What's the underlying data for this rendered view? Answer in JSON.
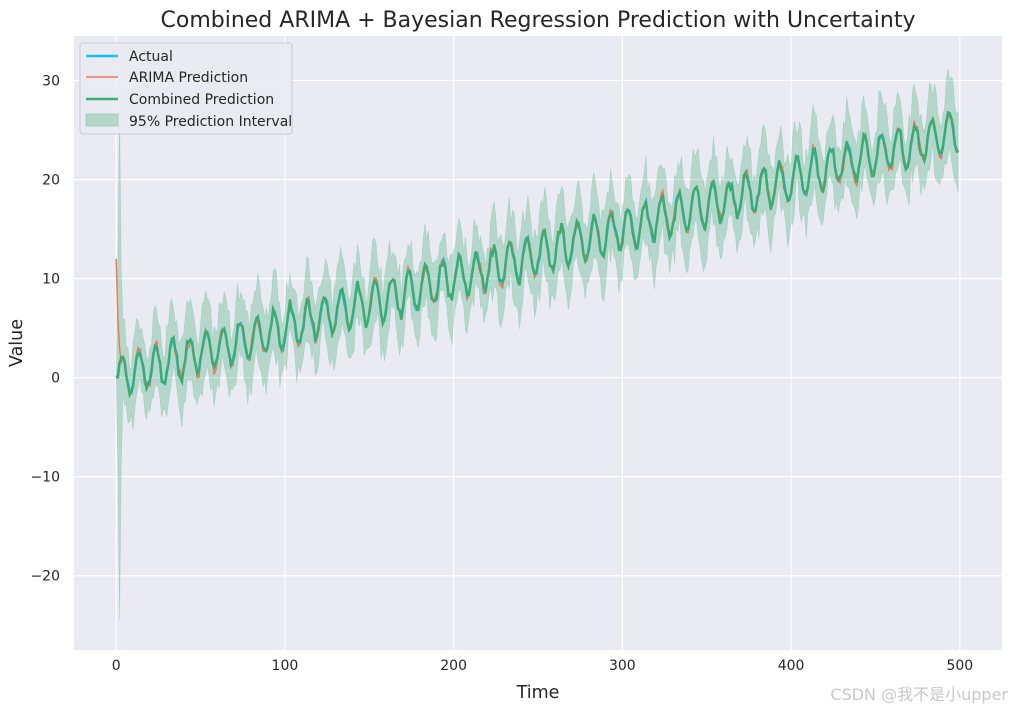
{
  "chart_data": {
    "type": "line",
    "title": "Combined ARIMA + Bayesian Regression Prediction with Uncertainty",
    "xlabel": "Time",
    "ylabel": "Value",
    "xlim": [
      -25,
      525
    ],
    "ylim": [
      -27.5,
      34.5
    ],
    "xticks": [
      0,
      100,
      200,
      300,
      400,
      500
    ],
    "yticks": [
      -20,
      -10,
      0,
      10,
      20,
      30
    ],
    "xtick_labels": [
      "0",
      "100",
      "200",
      "300",
      "400",
      "500"
    ],
    "ytick_labels": [
      "−20",
      "−10",
      "0",
      "10",
      "20",
      "30"
    ],
    "grid": true,
    "legend_position": "upper-left",
    "background": "#eaeaf2",
    "model": {
      "n_points": 500,
      "trend_per_step": 0.05,
      "seasonal_period": 10,
      "seasonal_amplitude": 2.0
    },
    "series": [
      {
        "name": "Actual",
        "style": "line",
        "color": "#13bff5",
        "start_value": 0.0,
        "end_value": 24.2
      },
      {
        "name": "ARIMA Prediction",
        "style": "line",
        "color": "#ee7a55",
        "start_value": 12.0,
        "end_value": 25.5
      },
      {
        "name": "Combined Prediction",
        "style": "line",
        "color": "#3aab72",
        "start_value": 0.0,
        "end_value": 25.2
      },
      {
        "name": "95% Prediction Interval",
        "style": "band",
        "color": "#3aab72",
        "band_half_width_typical": 2.8,
        "spike_at_x": 2,
        "spike_upper": 27,
        "spike_lower": -24.5
      }
    ]
  },
  "legend": {
    "items": [
      {
        "label": "Actual",
        "color": "#13bff5",
        "kind": "line"
      },
      {
        "label": "ARIMA Prediction",
        "color": "#ee7a55",
        "kind": "thin-line"
      },
      {
        "label": "Combined Prediction",
        "color": "#3aab72",
        "kind": "line"
      },
      {
        "label": "95% Prediction Interval",
        "color": "#3aab72",
        "kind": "patch"
      }
    ]
  },
  "watermark": "CSDN @我不是小upper"
}
